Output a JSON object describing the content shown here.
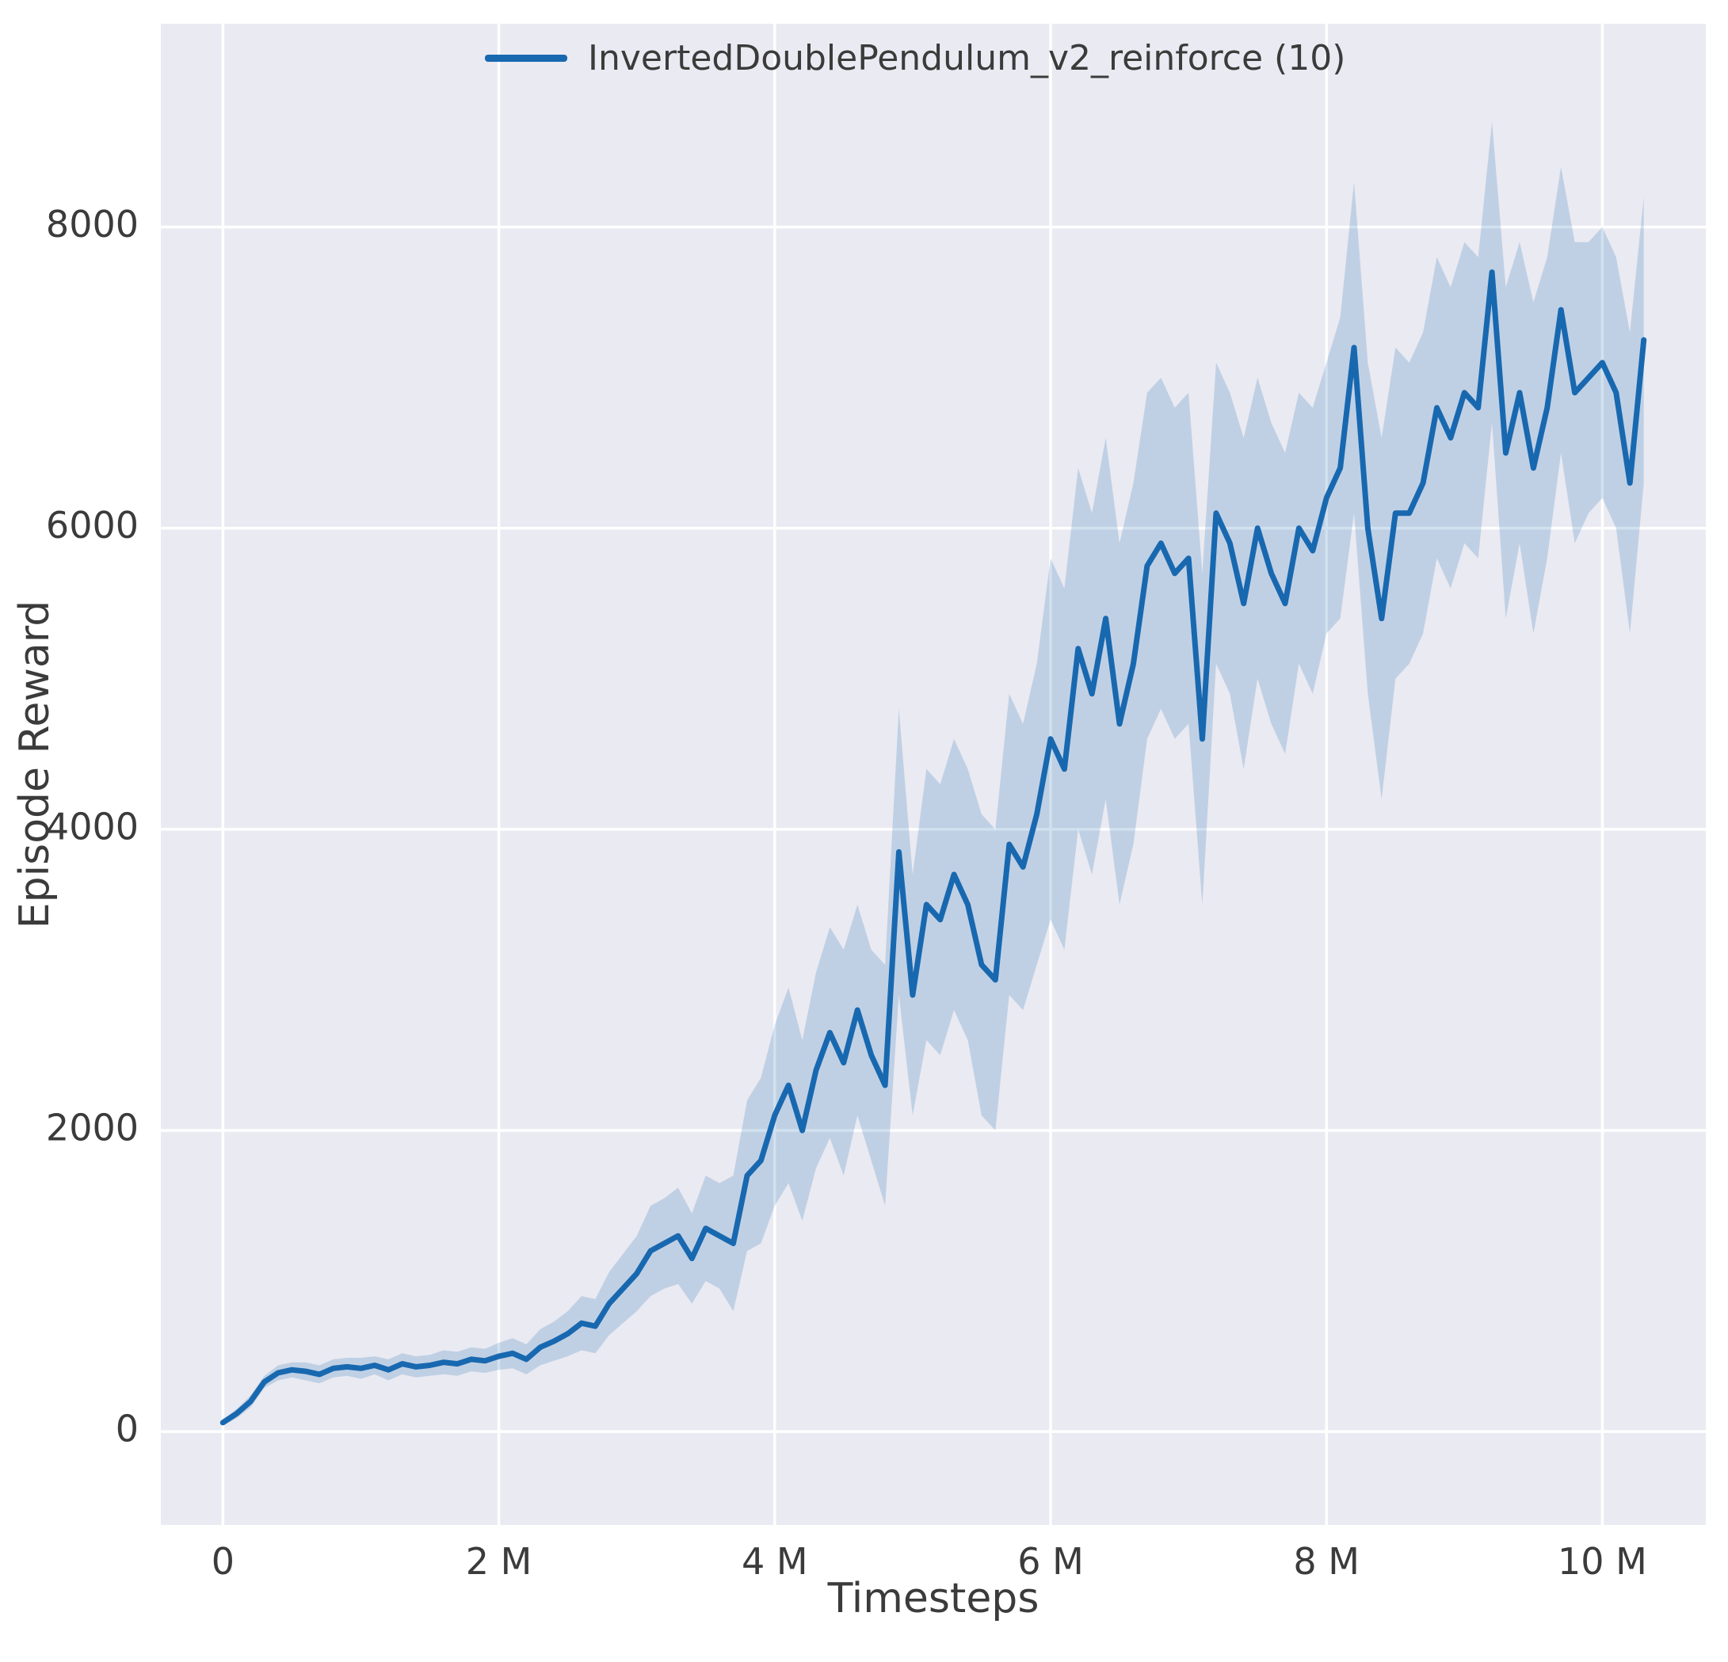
{
  "chart_data": {
    "type": "line",
    "title": "",
    "xlabel": "Timesteps",
    "ylabel": "Episode Reward",
    "series_label": "InvertedDoublePendulum_v2_reinforce (10)",
    "legend_position": "upper center",
    "grid": true,
    "x_units": "millions of timesteps",
    "xlim": [
      -0.45,
      10.75
    ],
    "ylim": [
      -620,
      9350
    ],
    "xticks": [
      [
        0,
        "0"
      ],
      [
        2,
        "2 M"
      ],
      [
        4,
        "4 M"
      ],
      [
        6,
        "6 M"
      ],
      [
        8,
        "8 M"
      ],
      [
        10,
        "10 M"
      ]
    ],
    "yticks": [
      [
        0,
        "0"
      ],
      [
        2000,
        "2000"
      ],
      [
        4000,
        "4000"
      ],
      [
        6000,
        "6000"
      ],
      [
        8000,
        "8000"
      ]
    ],
    "colors": {
      "plot_bg": "#eaeaf2",
      "grid": "#ffffff",
      "line": "#1868b0",
      "band": "#1868b0",
      "band_opacity": 0.2,
      "text": "#3b3b3b"
    },
    "x": [
      0.0,
      0.1,
      0.2,
      0.3,
      0.4,
      0.5,
      0.6,
      0.7,
      0.8,
      0.9,
      1.0,
      1.1,
      1.2,
      1.3,
      1.4,
      1.5,
      1.6,
      1.7,
      1.8,
      1.9,
      2.0,
      2.1,
      2.2,
      2.3,
      2.4,
      2.5,
      2.6,
      2.7,
      2.8,
      2.9,
      3.0,
      3.1,
      3.2,
      3.3,
      3.4,
      3.5,
      3.6,
      3.7,
      3.8,
      3.9,
      4.0,
      4.1,
      4.2,
      4.3,
      4.4,
      4.5,
      4.6,
      4.7,
      4.8,
      4.9,
      5.0,
      5.1,
      5.2,
      5.3,
      5.4,
      5.5,
      5.6,
      5.7,
      5.8,
      5.9,
      6.0,
      6.1,
      6.2,
      6.3,
      6.4,
      6.5,
      6.6,
      6.7,
      6.8,
      6.9,
      7.0,
      7.1,
      7.2,
      7.3,
      7.4,
      7.5,
      7.6,
      7.7,
      7.8,
      7.9,
      8.0,
      8.1,
      8.2,
      8.3,
      8.4,
      8.5,
      8.6,
      8.7,
      8.8,
      8.9,
      9.0,
      9.1,
      9.2,
      9.3,
      9.4,
      9.5,
      9.6,
      9.7,
      9.8,
      9.9,
      10.0,
      10.1,
      10.2,
      10.3
    ],
    "mean": [
      60,
      120,
      200,
      330,
      390,
      410,
      400,
      380,
      420,
      430,
      420,
      440,
      410,
      450,
      430,
      440,
      460,
      450,
      480,
      470,
      500,
      520,
      480,
      560,
      600,
      650,
      720,
      700,
      850,
      950,
      1050,
      1200,
      1250,
      1300,
      1150,
      1350,
      1300,
      1250,
      1700,
      1800,
      2100,
      2300,
      2000,
      2400,
      2650,
      2450,
      2800,
      2500,
      2300,
      3850,
      2900,
      3500,
      3400,
      3700,
      3500,
      3100,
      3000,
      3900,
      3750,
      4100,
      4600,
      4400,
      5200,
      4900,
      5400,
      4700,
      5100,
      5750,
      5900,
      5700,
      5800,
      4600,
      6100,
      5900,
      5500,
      6000,
      5700,
      5500,
      6000,
      5850,
      6200,
      6400,
      7200,
      6000,
      5400,
      6100,
      6100,
      6300,
      6800,
      6600,
      6900,
      6800,
      7700,
      6500,
      6900,
      6400,
      6800,
      7450,
      6900,
      7000,
      7100,
      6900,
      6300,
      7250
    ],
    "lower": [
      40,
      90,
      160,
      290,
      340,
      360,
      340,
      320,
      360,
      370,
      350,
      380,
      340,
      380,
      360,
      370,
      380,
      370,
      400,
      390,
      410,
      420,
      380,
      440,
      470,
      500,
      540,
      520,
      640,
      720,
      800,
      900,
      950,
      980,
      850,
      1000,
      950,
      800,
      1200,
      1250,
      1500,
      1650,
      1400,
      1750,
      1950,
      1700,
      2100,
      1800,
      1500,
      2900,
      2100,
      2600,
      2500,
      2800,
      2600,
      2100,
      2000,
      2900,
      2800,
      3100,
      3400,
      3200,
      4000,
      3700,
      4200,
      3500,
      3900,
      4600,
      4800,
      4600,
      4700,
      3500,
      5100,
      4900,
      4400,
      5000,
      4700,
      4500,
      5100,
      4900,
      5300,
      5400,
      6100,
      4900,
      4200,
      5000,
      5100,
      5300,
      5800,
      5600,
      5900,
      5800,
      6700,
      5400,
      5900,
      5300,
      5800,
      6500,
      5900,
      6100,
      6200,
      6000,
      5300,
      6300
    ],
    "upper": [
      80,
      150,
      240,
      370,
      440,
      460,
      460,
      440,
      480,
      490,
      490,
      500,
      480,
      520,
      500,
      510,
      540,
      530,
      560,
      550,
      590,
      620,
      580,
      680,
      730,
      800,
      900,
      880,
      1060,
      1180,
      1300,
      1500,
      1550,
      1620,
      1450,
      1700,
      1650,
      1700,
      2200,
      2350,
      2700,
      2950,
      2600,
      3050,
      3350,
      3200,
      3500,
      3200,
      3100,
      4800,
      3700,
      4400,
      4300,
      4600,
      4400,
      4100,
      4000,
      4900,
      4700,
      5100,
      5800,
      5600,
      6400,
      6100,
      6600,
      5900,
      6300,
      6900,
      7000,
      6800,
      6900,
      5700,
      7100,
      6900,
      6600,
      7000,
      6700,
      6500,
      6900,
      6800,
      7100,
      7400,
      8300,
      7100,
      6600,
      7200,
      7100,
      7300,
      7800,
      7600,
      7900,
      7800,
      8700,
      7600,
      7900,
      7500,
      7800,
      8400,
      7900,
      7900,
      8000,
      7800,
      7300,
      8200
    ]
  }
}
